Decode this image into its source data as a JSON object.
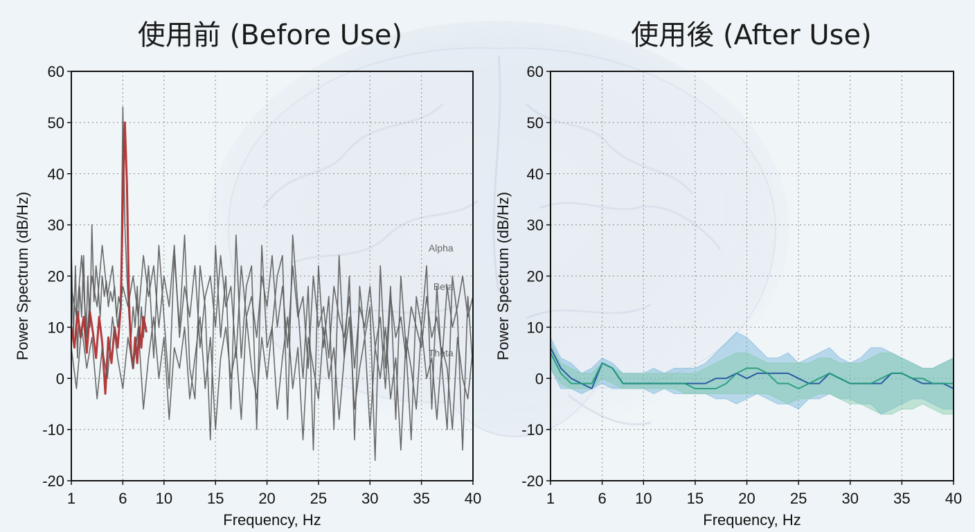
{
  "background": {
    "description_icon": "brain-illustration"
  },
  "colors": {
    "before_raw": "#5a5a5a",
    "before_highlight": "#b03030",
    "after_band_blue": "#6aaed6",
    "after_band_green": "#7cc7a3",
    "after_line_blue": "#1c4f9c",
    "after_line_green": "#1f9a78"
  },
  "chart_data": [
    {
      "type": "line",
      "title": "使用前 (Before Use)",
      "xlabel": "Frequency, Hz",
      "ylabel": "Power Spectrum (dB/Hz)",
      "xlim": [
        1,
        40
      ],
      "ylim": [
        -20,
        60
      ],
      "xticks": [
        "1",
        "6",
        "10",
        "15",
        "20",
        "25",
        "30",
        "35",
        "40"
      ],
      "xtick_values": [
        1,
        6,
        10,
        15,
        20,
        25,
        30,
        35,
        40
      ],
      "yticks": [
        "60",
        "50",
        "40",
        "30",
        "20",
        "10",
        "0",
        "-10",
        "-20"
      ],
      "ytick_values": [
        60,
        50,
        40,
        30,
        20,
        10,
        0,
        -10,
        -20
      ],
      "grid": true,
      "annotations": [
        {
          "text": "Alpha",
          "x": 38.5,
          "y": 25.5
        },
        {
          "text": "Beta",
          "x": 38.5,
          "y": 18
        },
        {
          "text": "Theta",
          "x": 38.5,
          "y": 5
        }
      ],
      "series": [
        {
          "x": [
            1,
            1.2,
            1.4,
            1.6,
            1.8,
            2,
            2.2,
            2.4,
            2.6,
            2.8,
            3,
            3.2,
            3.4,
            3.6,
            3.8,
            4,
            4.2,
            4.4,
            4.6,
            4.8,
            5,
            5.2,
            5.4,
            5.6,
            5.8,
            6,
            6.2,
            6.4,
            6.6,
            6.8,
            7,
            7.2,
            7.4,
            7.6,
            7.8,
            8,
            8.5,
            9,
            9.5,
            10,
            10.5,
            11,
            11.5,
            12,
            12.5,
            13,
            13.5,
            14,
            14.5,
            15,
            15.5,
            16,
            16.5,
            17,
            17.5,
            18,
            18.5,
            19,
            19.5,
            20,
            20.5,
            21,
            21.5,
            22,
            22.5,
            23,
            23.5,
            24,
            24.5,
            25,
            25.5,
            26,
            26.5,
            27,
            27.5,
            28,
            28.5,
            29,
            29.5,
            30,
            30.5,
            31,
            31.5,
            32,
            32.5,
            33,
            33.5,
            34,
            34.5,
            35,
            35.5,
            36,
            36.5,
            37,
            37.5,
            38,
            38.5,
            39,
            39.5,
            40
          ],
          "y": [
            25,
            8,
            22,
            4,
            18,
            12,
            24,
            6,
            20,
            10,
            30,
            15,
            22,
            18,
            12,
            20,
            16,
            19,
            14,
            17,
            15,
            18,
            12,
            16,
            14,
            53,
            30,
            20,
            12,
            8,
            14,
            10,
            18,
            6,
            14,
            8,
            22,
            4,
            26,
            12,
            -2,
            24,
            10,
            28,
            2,
            -4,
            22,
            14,
            -12,
            26,
            8,
            20,
            -6,
            28,
            4,
            18,
            22,
            -10,
            26,
            6,
            10,
            20,
            24,
            -8,
            28,
            14,
            0,
            18,
            -14,
            22,
            6,
            16,
            -10,
            24,
            4,
            20,
            -12,
            18,
            8,
            14,
            -16,
            22,
            2,
            18,
            -8,
            20,
            6,
            -12,
            16,
            10,
            22,
            -6,
            18,
            2,
            -10,
            20,
            12,
            -14,
            16,
            2
          ],
          "color": "#5a5a5a"
        },
        {
          "x": [
            1,
            1.3,
            1.6,
            1.9,
            2.2,
            2.5,
            2.8,
            3.1,
            3.4,
            3.7,
            4,
            4.3,
            4.6,
            4.9,
            5.2,
            5.5,
            5.8,
            6,
            6.2,
            6.4,
            6.6,
            6.8,
            7,
            7.2,
            7.4,
            7.6,
            7.8,
            8,
            8.3
          ],
          "y": [
            10,
            6,
            13,
            8,
            12,
            5,
            13,
            9,
            4,
            12,
            7,
            -3,
            8,
            3,
            10,
            6,
            14,
            35,
            50,
            38,
            15,
            5,
            2,
            8,
            3,
            10,
            6,
            12,
            9
          ],
          "color": "#b03030"
        },
        {
          "x": [
            1,
            1.5,
            2,
            2.5,
            3,
            3.5,
            4,
            4.5,
            5,
            5.5,
            6,
            6.5,
            7,
            7.5,
            8,
            8.5,
            9,
            9.5,
            10,
            10.5,
            11,
            11.5,
            12,
            12.5,
            13,
            13.5,
            14,
            14.5,
            15,
            15.5,
            16,
            16.5,
            17,
            17.5,
            18,
            18.5,
            19,
            19.5,
            20,
            20.5,
            21,
            21.5,
            22,
            22.5,
            23,
            23.5,
            24,
            24.5,
            25,
            25.5,
            26,
            26.5,
            27,
            27.5,
            28,
            28.5,
            29,
            29.5,
            30,
            30.5,
            31,
            31.5,
            32,
            32.5,
            33,
            33.5,
            34,
            34.5,
            35,
            35.5,
            36,
            36.5,
            37,
            37.5,
            38,
            38.5,
            39,
            39.5,
            40
          ],
          "y": [
            18,
            12,
            24,
            8,
            20,
            14,
            26,
            16,
            22,
            10,
            18,
            14,
            20,
            12,
            24,
            16,
            22,
            10,
            20,
            14,
            26,
            8,
            18,
            12,
            22,
            6,
            16,
            20,
            10,
            24,
            14,
            18,
            4,
            22,
            12,
            16,
            8,
            20,
            14,
            24,
            10,
            18,
            6,
            22,
            12,
            16,
            2,
            20,
            10,
            14,
            4,
            18,
            12,
            8,
            16,
            2,
            14,
            10,
            18,
            6,
            12,
            -2,
            16,
            8,
            12,
            4,
            14,
            10,
            6,
            16,
            8,
            12,
            4,
            18,
            10,
            14,
            20,
            12,
            16
          ],
          "color": "#5a5a5a"
        },
        {
          "x": [
            1,
            1.5,
            2,
            2.5,
            3,
            3.5,
            4,
            4.5,
            5,
            5.5,
            6,
            6.5,
            7,
            7.5,
            8,
            8.5,
            9,
            9.5,
            10,
            10.5,
            11,
            11.5,
            12,
            12.5,
            13,
            13.5,
            14,
            14.5,
            15,
            15.5,
            16,
            16.5,
            17,
            17.5,
            18,
            18.5,
            19,
            19.5,
            20,
            20.5,
            21,
            21.5,
            22,
            22.5,
            23,
            23.5,
            24,
            24.5,
            25,
            25.5,
            26,
            26.5,
            27,
            27.5,
            28,
            28.5,
            29,
            29.5,
            30,
            30.5,
            31,
            31.5,
            32,
            32.5,
            33,
            33.5,
            34,
            34.5,
            35,
            35.5,
            36,
            36.5,
            37,
            37.5,
            38,
            38.5,
            39,
            39.5,
            40
          ],
          "y": [
            6,
            -2,
            10,
            2,
            8,
            -4,
            6,
            0,
            12,
            4,
            -2,
            8,
            2,
            10,
            -6,
            4,
            12,
            0,
            8,
            -8,
            6,
            2,
            10,
            -4,
            4,
            12,
            -2,
            8,
            -10,
            4,
            10,
            0,
            6,
            -8,
            12,
            2,
            -4,
            8,
            0,
            10,
            -6,
            4,
            12,
            -2,
            6,
            -12,
            8,
            2,
            -4,
            10,
            0,
            6,
            -8,
            4,
            12,
            -6,
            2,
            8,
            -10,
            6,
            0,
            10,
            -4,
            4,
            -14,
            8,
            2,
            -6,
            10,
            0,
            4,
            -8,
            6,
            2,
            -10,
            8,
            0,
            -4,
            6
          ],
          "color": "#5a5a5a"
        }
      ]
    },
    {
      "type": "area",
      "title": "使用後 (After Use)",
      "xlabel": "Frequency, Hz",
      "ylabel": "Power Spectrum (dB/Hz)",
      "xlim": [
        1,
        40
      ],
      "ylim": [
        -20,
        60
      ],
      "xticks": [
        "1",
        "6",
        "10",
        "15",
        "20",
        "25",
        "30",
        "35",
        "40"
      ],
      "xtick_values": [
        1,
        6,
        10,
        15,
        20,
        25,
        30,
        35,
        40
      ],
      "yticks": [
        "60",
        "50",
        "40",
        "30",
        "20",
        "10",
        "0",
        "-10",
        "-20"
      ],
      "ytick_values": [
        60,
        50,
        40,
        30,
        20,
        10,
        0,
        -10,
        -20
      ],
      "grid": true,
      "series": [
        {
          "x": [
            1,
            2,
            3,
            4,
            5,
            6,
            7,
            8,
            9,
            10,
            11,
            12,
            13,
            14,
            15,
            16,
            17,
            18,
            19,
            20,
            21,
            22,
            23,
            24,
            25,
            26,
            27,
            28,
            29,
            30,
            31,
            32,
            33,
            34,
            35,
            36,
            37,
            38,
            39,
            40
          ],
          "y_low": [
            2,
            -2,
            -2,
            -3,
            -2,
            -1,
            -2,
            -2,
            -2,
            -2,
            -3,
            -2,
            -3,
            -3,
            -3,
            -3,
            -4,
            -4,
            -5,
            -4,
            -3,
            -4,
            -5,
            -5,
            -6,
            -4,
            -4,
            -3,
            -4,
            -4,
            -5,
            -5,
            -7,
            -6,
            -5,
            -4,
            -4,
            -5,
            -6,
            -6
          ],
          "y_high": [
            8,
            4,
            3,
            1,
            2,
            4,
            3,
            1,
            1,
            1,
            2,
            1,
            2,
            2,
            2,
            3,
            5,
            7,
            9,
            8,
            6,
            4,
            4,
            5,
            3,
            4,
            5,
            6,
            4,
            3,
            4,
            6,
            6,
            5,
            4,
            3,
            2,
            2,
            3,
            4
          ],
          "color": "#6aaed6"
        },
        {
          "x": [
            1,
            2,
            3,
            4,
            5,
            6,
            7,
            8,
            9,
            10,
            11,
            12,
            13,
            14,
            15,
            16,
            17,
            18,
            19,
            20,
            21,
            22,
            23,
            24,
            25,
            26,
            27,
            28,
            29,
            30,
            31,
            32,
            33,
            34,
            35,
            36,
            37,
            38,
            39,
            40
          ],
          "y_low": [
            2,
            -1,
            -2,
            -2,
            -2,
            0,
            -1,
            -2,
            -2,
            -2,
            -2,
            -2,
            -2,
            -3,
            -3,
            -3,
            -3,
            -3,
            -3,
            -3,
            -3,
            -3,
            -4,
            -5,
            -4,
            -4,
            -3,
            -3,
            -4,
            -5,
            -5,
            -6,
            -7,
            -7,
            -6,
            -6,
            -5,
            -6,
            -7,
            -7
          ],
          "y_high": [
            7,
            3,
            2,
            1,
            1,
            3,
            2,
            1,
            1,
            1,
            1,
            1,
            1,
            1,
            1,
            2,
            3,
            4,
            5,
            5,
            4,
            3,
            3,
            3,
            3,
            3,
            4,
            4,
            3,
            3,
            3,
            4,
            5,
            5,
            4,
            3,
            2,
            2,
            3,
            4
          ],
          "color": "#7cc7a3"
        },
        {
          "x": [
            1,
            2,
            3,
            4,
            5,
            6,
            7,
            8,
            9,
            10,
            11,
            12,
            13,
            14,
            15,
            16,
            17,
            18,
            19,
            20,
            21,
            22,
            23,
            24,
            25,
            26,
            27,
            28,
            29,
            30,
            31,
            32,
            33,
            34,
            35,
            36,
            37,
            38,
            39,
            40
          ],
          "y": [
            6,
            2,
            0,
            -1,
            -2,
            3,
            2,
            -1,
            -1,
            -1,
            -1,
            -1,
            -1,
            -1,
            -1,
            -1,
            0,
            0,
            1,
            0,
            1,
            1,
            1,
            1,
            0,
            -1,
            -1,
            1,
            0,
            -1,
            -1,
            -1,
            -1,
            1,
            1,
            0,
            -1,
            -1,
            -1,
            -2
          ],
          "color": "#1c4f9c"
        },
        {
          "x": [
            1,
            2,
            3,
            4,
            5,
            6,
            7,
            8,
            9,
            10,
            11,
            12,
            13,
            14,
            15,
            16,
            17,
            18,
            19,
            20,
            21,
            22,
            23,
            24,
            25,
            26,
            27,
            28,
            29,
            30,
            31,
            32,
            33,
            34,
            35,
            36,
            37,
            38,
            39,
            40
          ],
          "y": [
            5,
            1,
            -1,
            -1,
            -1,
            3,
            2,
            -1,
            -1,
            -1,
            -1,
            -1,
            -1,
            -1,
            -2,
            -2,
            -2,
            -1,
            1,
            2,
            2,
            1,
            -1,
            -1,
            -2,
            -1,
            0,
            1,
            0,
            -1,
            -1,
            -1,
            0,
            1,
            1,
            0,
            0,
            -1,
            -1,
            -1
          ],
          "color": "#1f9a78"
        }
      ]
    }
  ]
}
